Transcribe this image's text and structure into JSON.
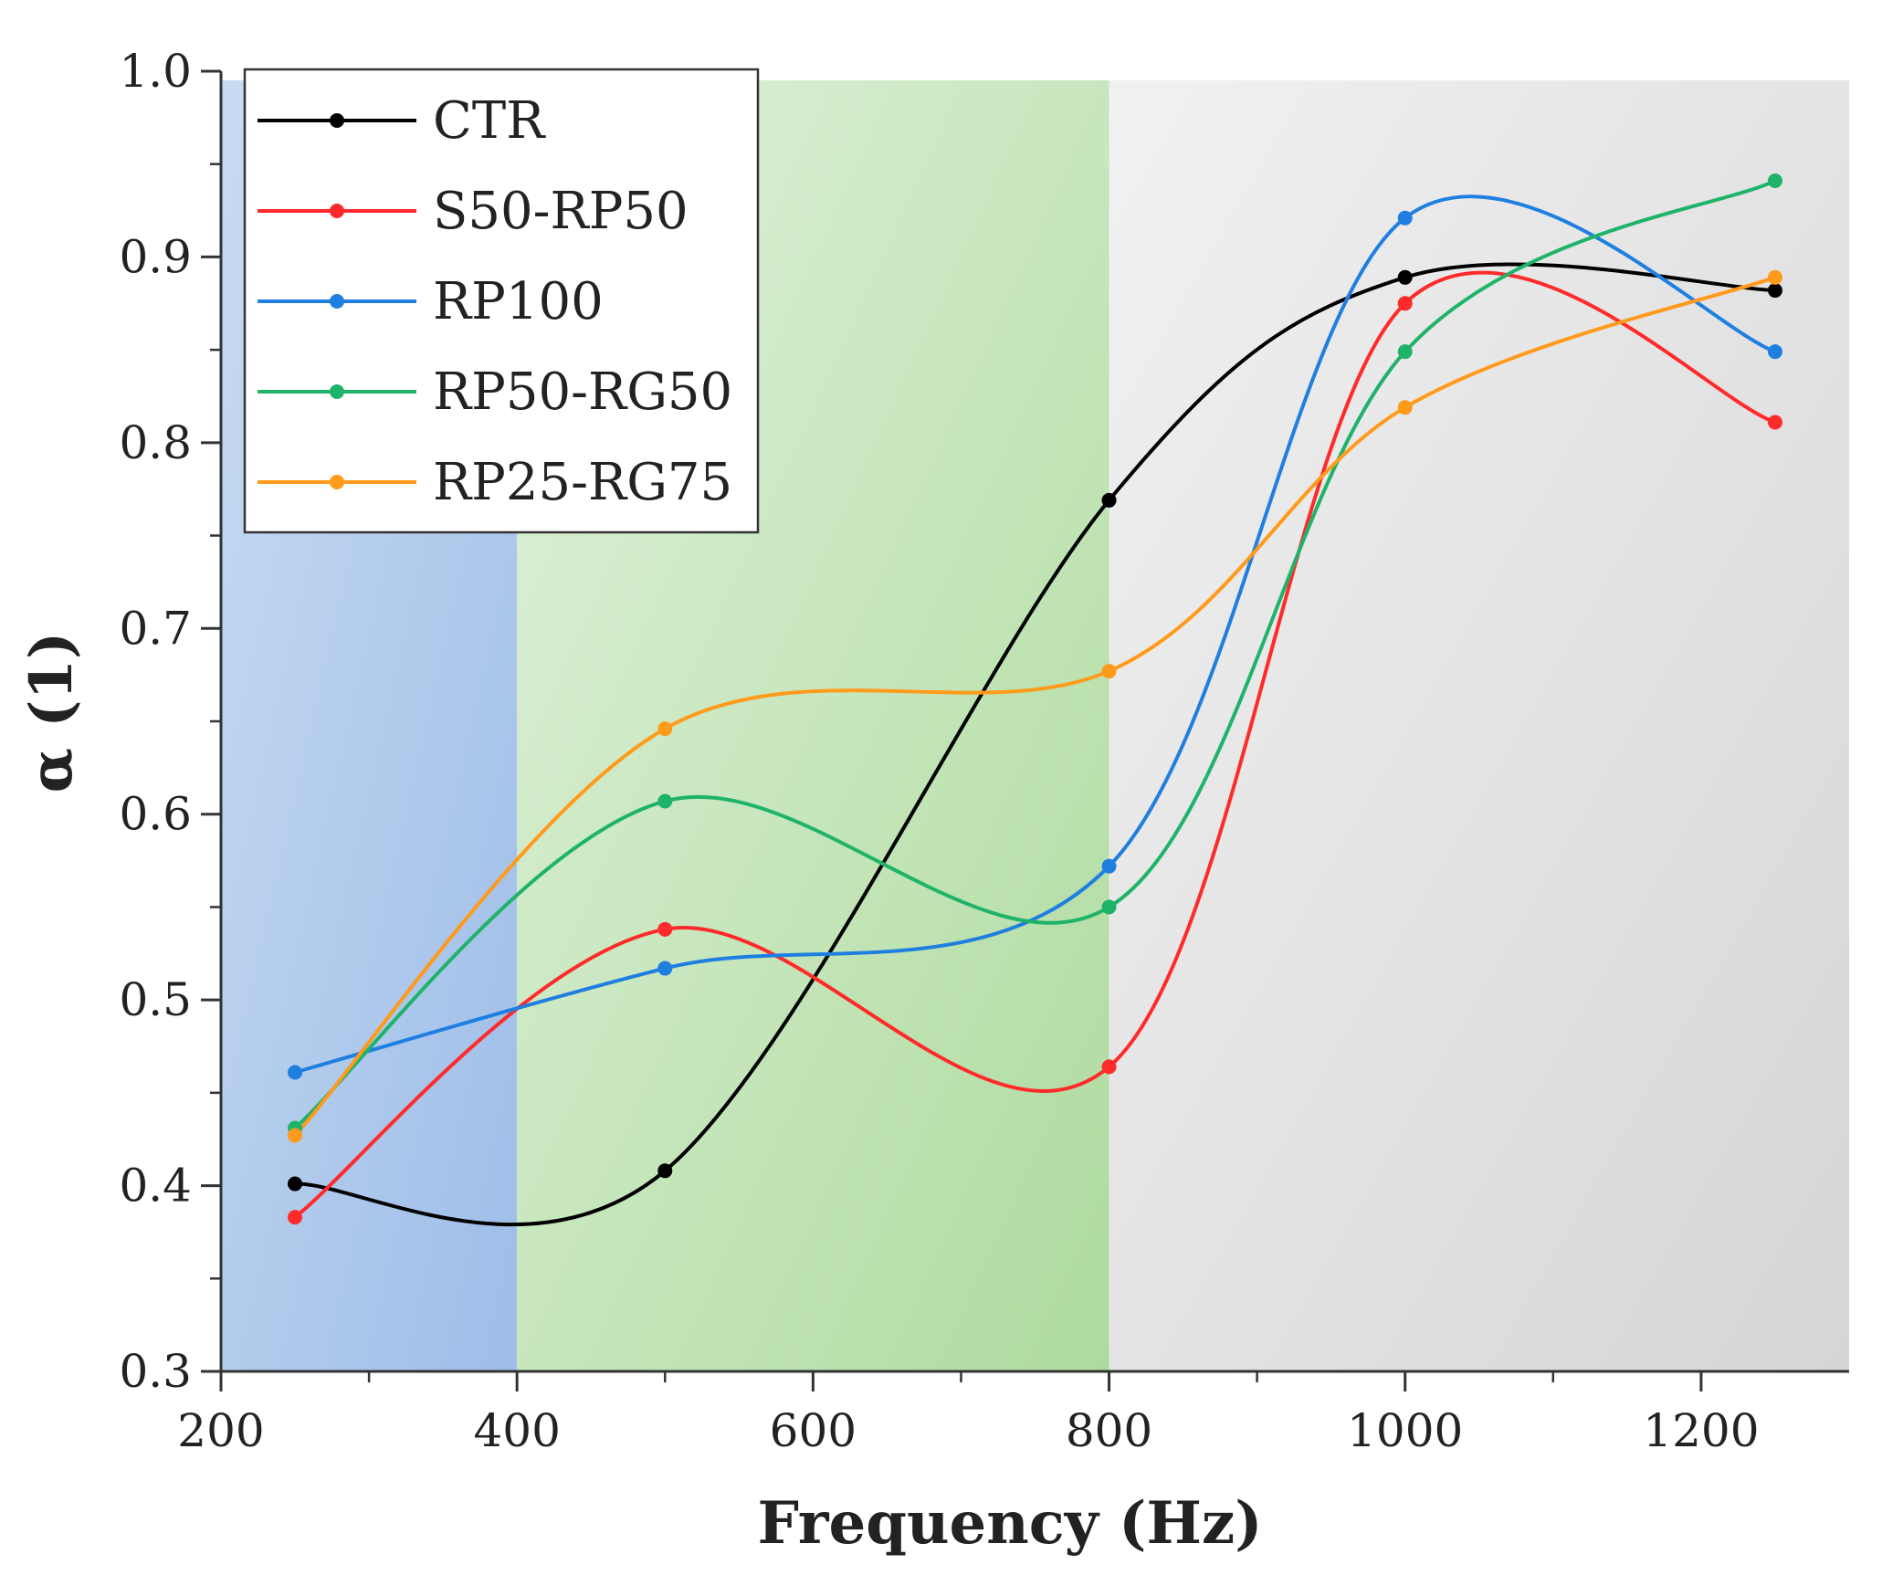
{
  "chart_data": {
    "type": "line",
    "title": "",
    "xlabel": "Frequency (Hz)",
    "ylabel": "α (1)",
    "xlim": [
      200,
      1300
    ],
    "ylim": [
      0.3,
      1.0
    ],
    "x_ticks": [
      200,
      400,
      600,
      800,
      1000,
      1200
    ],
    "x_tick_labels": [
      "200",
      "400",
      "600",
      "800",
      "1000",
      "1200"
    ],
    "y_ticks": [
      0.3,
      0.4,
      0.5,
      0.6,
      0.7,
      0.8,
      0.9,
      1.0
    ],
    "y_tick_labels": [
      "0.3",
      "0.4",
      "0.5",
      "0.6",
      "0.7",
      "0.8",
      "0.9",
      "1.0"
    ],
    "x": [
      250,
      500,
      800,
      1000,
      1250
    ],
    "series": [
      {
        "name": "CTR",
        "color": "#000000",
        "values": [
          0.401,
          0.408,
          0.769,
          0.889,
          0.882
        ]
      },
      {
        "name": "S50-RP50",
        "color": "#ff2a2a",
        "values": [
          0.383,
          0.538,
          0.464,
          0.875,
          0.811
        ]
      },
      {
        "name": "RP100",
        "color": "#1f7fe0",
        "values": [
          0.461,
          0.517,
          0.572,
          0.921,
          0.849
        ]
      },
      {
        "name": "RP50-RG50",
        "color": "#1fb36a",
        "values": [
          0.431,
          0.607,
          0.55,
          0.849,
          0.941
        ]
      },
      {
        "name": "RP25-RG75",
        "color": "#ff9a1a",
        "values": [
          0.427,
          0.646,
          0.677,
          0.819,
          0.889
        ]
      }
    ],
    "bands": [
      {
        "name": "low-frequency-band",
        "x_range": [
          200,
          400
        ],
        "colors": [
          "#c9dbf2",
          "#9dbde8"
        ]
      },
      {
        "name": "mid-frequency-band",
        "x_range": [
          400,
          800
        ],
        "colors": [
          "#e0f2dc",
          "#aedb9e"
        ]
      },
      {
        "name": "high-frequency-band",
        "x_range": [
          800,
          1300
        ],
        "colors": [
          "#f1f1f1",
          "#d6d6d6"
        ]
      }
    ],
    "legend_position": "top-left",
    "grid": false
  }
}
